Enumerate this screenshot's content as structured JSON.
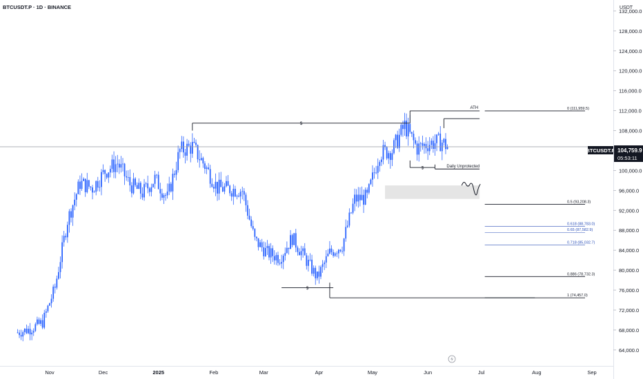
{
  "header": {
    "symbol_label": "BTCUSDT.P · 1D · BINANCE",
    "currency": "USDT"
  },
  "price_badge": {
    "symbol": "BTCUSDT.P",
    "price": "104,759.9",
    "countdown": "05:53:11"
  },
  "colors": {
    "background": "#ffffff",
    "candle": "#2962ff",
    "axis_text": "#131722",
    "grid_line": "#b2b5be",
    "zone_fill": "#e0e0e0",
    "fib_blue": "#2a4fb8",
    "fib_black": "#131722"
  },
  "chart_data": {
    "type": "candlestick",
    "title": "BTCUSDT.P · 1D · BINANCE",
    "y_axis_label": "USDT",
    "y_ticks": [
      "132,000.0",
      "128,000.0",
      "124,000.0",
      "120,000.0",
      "116,000.0",
      "112,000.0",
      "108,000.0",
      "100,000.0",
      "96,000.0",
      "92,000.0",
      "88,000.0",
      "84,000.0",
      "80,000.0",
      "76,000.0",
      "72,000.0",
      "68,000.0",
      "64,000.0"
    ],
    "x_ticks": [
      "Nov",
      "Dec",
      "2025",
      "Feb",
      "Mar",
      "Apr",
      "May",
      "Jun",
      "Jul",
      "Aug",
      "Sep"
    ],
    "ylim": [
      60800,
      134200
    ],
    "current_price": 104759.9,
    "weekly_closes": [
      {
        "date": "2024-10-14",
        "close": 67500
      },
      {
        "date": "2024-10-21",
        "close": 68200
      },
      {
        "date": "2024-10-28",
        "close": 69500
      },
      {
        "date": "2024-11-04",
        "close": 76500
      },
      {
        "date": "2024-11-11",
        "close": 90000
      },
      {
        "date": "2024-11-18",
        "close": 97500
      },
      {
        "date": "2024-11-25",
        "close": 96500
      },
      {
        "date": "2024-12-02",
        "close": 99800
      },
      {
        "date": "2024-12-09",
        "close": 101500
      },
      {
        "date": "2024-12-16",
        "close": 97200
      },
      {
        "date": "2024-12-23",
        "close": 95500
      },
      {
        "date": "2024-12-30",
        "close": 98300
      },
      {
        "date": "2025-01-06",
        "close": 94500
      },
      {
        "date": "2025-01-13",
        "close": 104000
      },
      {
        "date": "2025-01-20",
        "close": 104800
      },
      {
        "date": "2025-01-27",
        "close": 101000
      },
      {
        "date": "2025-02-03",
        "close": 96500
      },
      {
        "date": "2025-02-10",
        "close": 96300
      },
      {
        "date": "2025-02-17",
        "close": 96000
      },
      {
        "date": "2025-02-24",
        "close": 86000
      },
      {
        "date": "2025-03-03",
        "close": 83500
      },
      {
        "date": "2025-03-10",
        "close": 82500
      },
      {
        "date": "2025-03-17",
        "close": 86500
      },
      {
        "date": "2025-03-24",
        "close": 82500
      },
      {
        "date": "2025-03-31",
        "close": 78500
      },
      {
        "date": "2025-04-07",
        "close": 83500
      },
      {
        "date": "2025-04-14",
        "close": 85000
      },
      {
        "date": "2025-04-21",
        "close": 94200
      },
      {
        "date": "2025-04-28",
        "close": 94600
      },
      {
        "date": "2025-05-05",
        "close": 103500
      },
      {
        "date": "2025-05-12",
        "close": 104000
      },
      {
        "date": "2025-05-19",
        "close": 109000
      },
      {
        "date": "2025-05-26",
        "close": 104500
      },
      {
        "date": "2025-06-02",
        "close": 105500
      },
      {
        "date": "2025-06-09",
        "close": 105700
      },
      {
        "date": "2025-06-12",
        "close": 104759.9
      }
    ],
    "horizontal_levels": [
      {
        "label": "ATH",
        "price": 111959.5,
        "from": "2025-05-22",
        "to": "2025-06-30"
      },
      {
        "label": "$",
        "price": 109500,
        "from": "2025-01-20",
        "to": "2025-05-22"
      },
      {
        "label": "",
        "price": 110400,
        "from": "2025-06-10",
        "to": "2025-06-30"
      },
      {
        "label": "$",
        "price": 100600,
        "from": "2025-05-22",
        "to": "2025-06-05"
      },
      {
        "label": "Daily Unprotected",
        "price": 100300,
        "from": "2025-06-05",
        "to": "2025-06-30"
      },
      {
        "label": "$",
        "price": 76500,
        "from": "2025-03-11",
        "to": "2025-04-09"
      },
      {
        "label": "",
        "price": 74457.0,
        "from": "2025-04-07",
        "to": "2025-07-31"
      }
    ],
    "zone": {
      "from": "2025-05-08",
      "to": "2025-06-30",
      "price_low": 94300,
      "price_high": 97000
    },
    "fib_levels": [
      {
        "label": "0 (111,959.5)",
        "price": 111959.5,
        "color": "black"
      },
      {
        "label": "0.5 (93,208.3)",
        "price": 93208.3,
        "color": "black"
      },
      {
        "label": "0.618 (88,783.0)",
        "price": 88783.0,
        "color": "blue"
      },
      {
        "label": "0.65 (87,582.9)",
        "price": 87582.9,
        "color": "blue"
      },
      {
        "label": "0.718 (85,032.7)",
        "price": 85032.7,
        "color": "blue"
      },
      {
        "label": "0.886 (78,732.3)",
        "price": 78732.3,
        "color": "black"
      },
      {
        "label": "1 (74,457.0)",
        "price": 74457.0,
        "color": "black"
      }
    ],
    "grid": false,
    "legend": "none"
  }
}
